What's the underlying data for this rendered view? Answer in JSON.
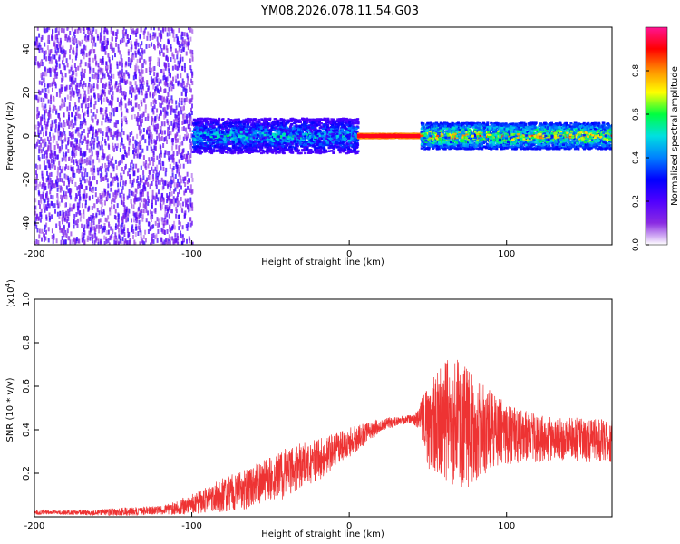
{
  "title": "YM08.2026.078.11.54.G03",
  "colors": {
    "background": "#ffffff",
    "axis": "#000000",
    "snr_line": "#ee3333",
    "colormap": [
      "#ffffff",
      "#8a2be2",
      "#5000ff",
      "#0000ff",
      "#0080ff",
      "#00e0e0",
      "#00ff40",
      "#ffff00",
      "#ff9000",
      "#ff0000",
      "#ff1493"
    ]
  },
  "chart_data": [
    {
      "type": "heatmap",
      "name": "spectrogram",
      "xlabel": "Height of straight line (km)",
      "ylabel": "Frequency (Hz)",
      "xlim": [
        -200,
        167
      ],
      "ylim": [
        -50,
        50
      ],
      "xticks": [
        -200,
        -100,
        0,
        100
      ],
      "yticks": [
        -40,
        -20,
        0,
        20,
        40
      ],
      "grid": false,
      "description_bands": [
        {
          "x_range": [
            -200,
            -100
          ],
          "y_range": [
            -50,
            50
          ],
          "amplitude_range": [
            0.05,
            0.25
          ]
        },
        {
          "x_range": [
            -100,
            5
          ],
          "y_range": [
            -8,
            8
          ],
          "amplitude_range": [
            0.2,
            0.6
          ]
        },
        {
          "x_range": [
            5,
            45
          ],
          "y_range": [
            -1,
            1
          ],
          "amplitude_range": [
            0.8,
            1.0
          ]
        },
        {
          "x_range": [
            45,
            167
          ],
          "y_range": [
            -6,
            6
          ],
          "amplitude_range": [
            0.3,
            0.9
          ]
        }
      ],
      "colorbar": {
        "label": "Normalized spectral amplitude",
        "range": [
          0,
          1
        ],
        "ticks": [
          "0.0",
          "0.2",
          "0.4",
          "0.6",
          "0.8"
        ]
      }
    },
    {
      "type": "line",
      "name": "snr",
      "xlabel": "Height of straight line (km)",
      "ylabel": "SNR (10 * v/v)",
      "scale_label": "(x10",
      "scale_exponent": "4",
      "xlim": [
        -200,
        167
      ],
      "ylim": [
        0,
        1.0
      ],
      "xticks": [
        -200,
        -100,
        0,
        100
      ],
      "yticks": [
        "0.2",
        "0.4",
        "0.6",
        "0.8",
        "1.0"
      ],
      "series": [
        {
          "name": "SNR",
          "x": [
            -200,
            -180,
            -160,
            -140,
            -120,
            -110,
            -100,
            -90,
            -80,
            -70,
            -60,
            -50,
            -40,
            -30,
            -20,
            -10,
            0,
            10,
            20,
            30,
            40,
            45,
            50,
            60,
            70,
            80,
            90,
            100,
            110,
            120,
            130,
            140,
            150,
            160,
            167
          ],
          "y": [
            0.02,
            0.02,
            0.02,
            0.025,
            0.03,
            0.04,
            0.06,
            0.08,
            0.1,
            0.12,
            0.14,
            0.18,
            0.2,
            0.24,
            0.26,
            0.3,
            0.34,
            0.38,
            0.42,
            0.44,
            0.45,
            0.46,
            0.42,
            0.45,
            0.42,
            0.4,
            0.4,
            0.38,
            0.37,
            0.36,
            0.36,
            0.36,
            0.35,
            0.35,
            0.35
          ],
          "envelope": [
            0.01,
            0.01,
            0.015,
            0.02,
            0.02,
            0.03,
            0.05,
            0.06,
            0.08,
            0.09,
            0.1,
            0.1,
            0.12,
            0.1,
            0.1,
            0.08,
            0.07,
            0.05,
            0.03,
            0.02,
            0.02,
            0.06,
            0.2,
            0.28,
            0.3,
            0.25,
            0.18,
            0.14,
            0.12,
            0.11,
            0.1,
            0.1,
            0.1,
            0.1,
            0.1
          ]
        }
      ]
    }
  ]
}
